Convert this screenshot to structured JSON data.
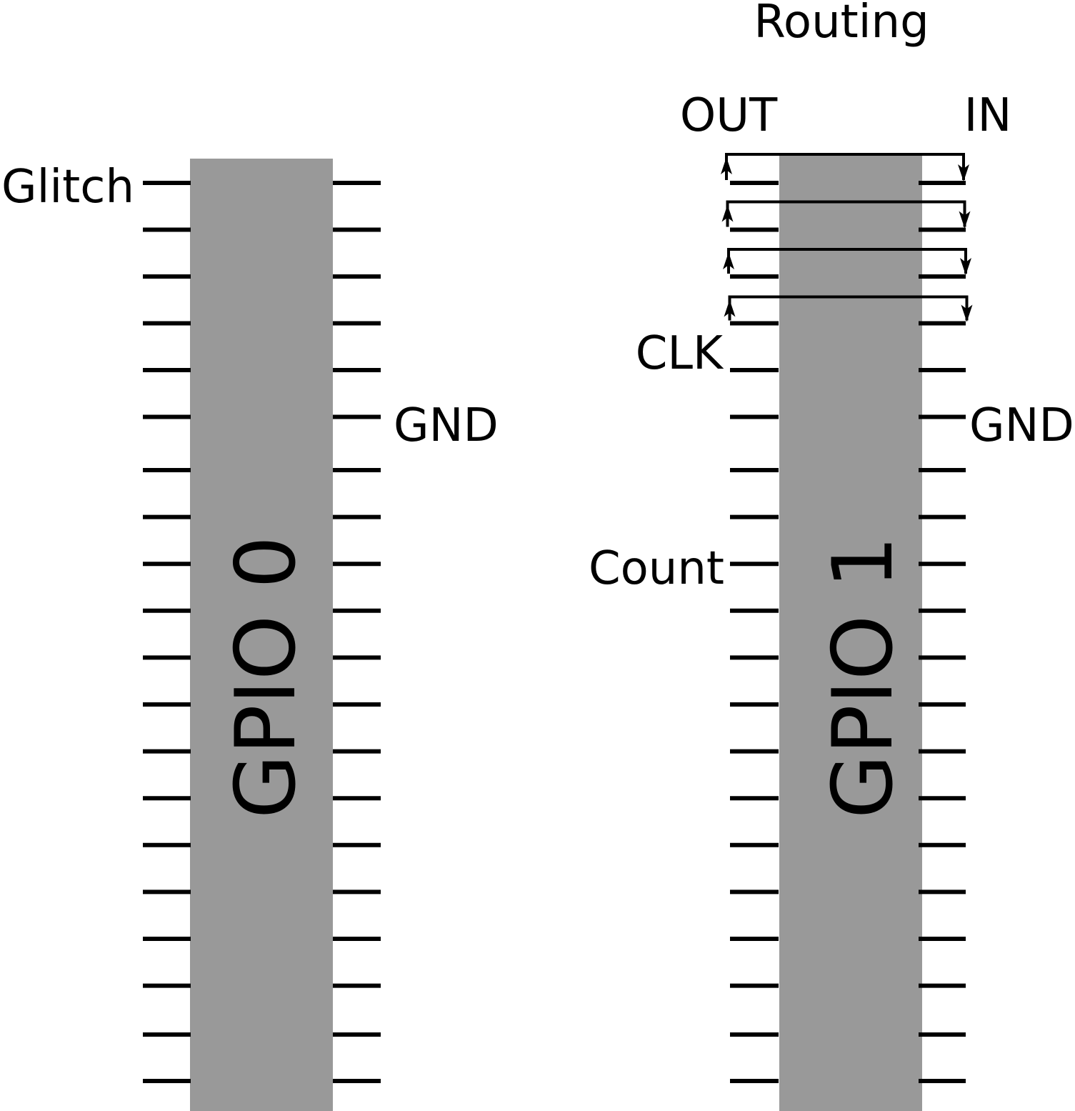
{
  "diagram": {
    "routing_title": "Routing",
    "out_label": "OUT",
    "in_label": "IN",
    "chips": [
      {
        "name": "GPIO 0",
        "left_pin_labels": {
          "glitch": "Glitch"
        },
        "right_pin_labels": {
          "gnd": "GND"
        }
      },
      {
        "name": "GPIO 1",
        "left_pin_labels": {
          "clk": "CLK",
          "count": "Count"
        },
        "right_pin_labels": {
          "gnd": "GND"
        }
      }
    ],
    "pins_per_side": 20,
    "routed_pin_pairs": 4,
    "colors": {
      "chip_body": "#999999",
      "pin": "#000000",
      "text": "#000000",
      "background": "#ffffff"
    }
  }
}
